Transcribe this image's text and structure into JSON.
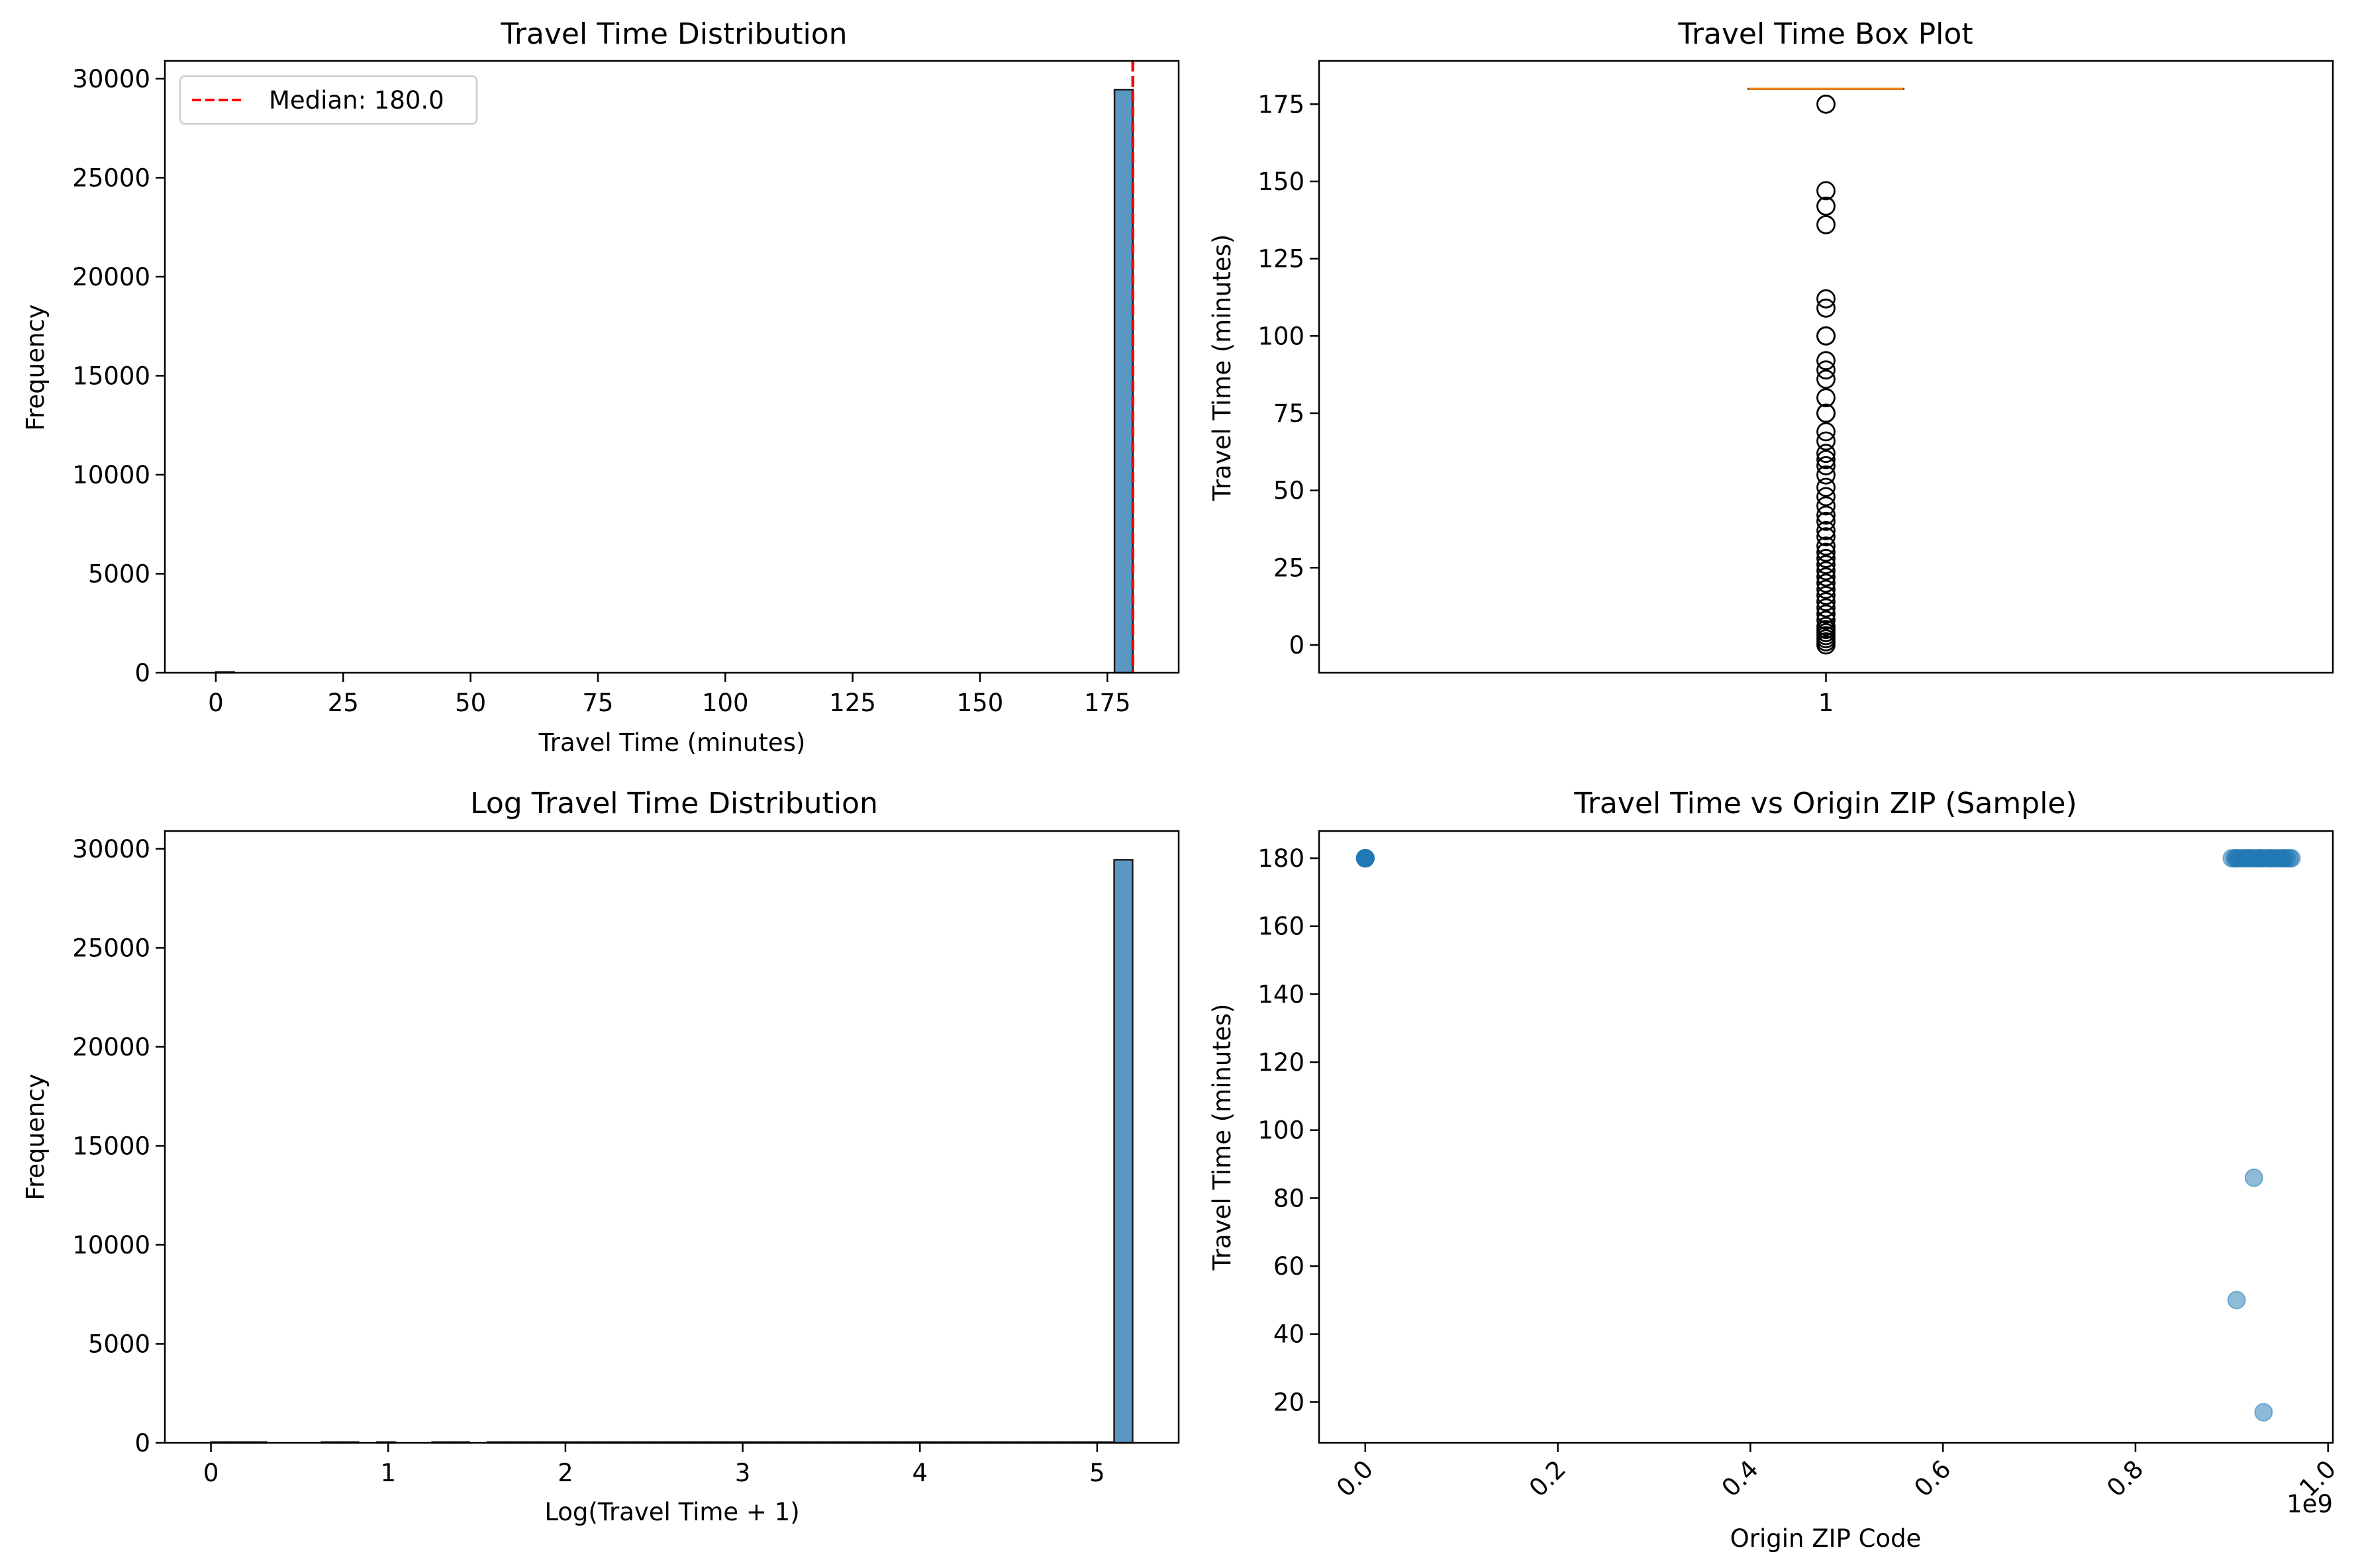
{
  "chart_data": [
    {
      "type": "histogram",
      "title": "Travel Time Distribution",
      "xlabel": "Travel Time (minutes)",
      "ylabel": "Frequency",
      "xlim": [
        -10,
        189
      ],
      "ylim": [
        0,
        30900
      ],
      "xticks": [
        0,
        25,
        50,
        75,
        100,
        125,
        150,
        175
      ],
      "yticks": [
        0,
        5000,
        10000,
        15000,
        20000,
        25000,
        30000
      ],
      "bins": [
        {
          "x0": 0,
          "x1": 3.6,
          "count": 25
        },
        {
          "x0": 176.4,
          "x1": 180,
          "count": 29450
        }
      ],
      "bar_color": "#5b97c3",
      "edge_color": "#1a1a1a",
      "median_line": {
        "x": 180,
        "label": "Median: 180.0",
        "color": "#ff0000"
      },
      "legend_position": "top-left",
      "grid": false
    },
    {
      "type": "box",
      "title": "Travel Time Box Plot",
      "xlabel": "",
      "ylabel": "Travel Time (minutes)",
      "ylim": [
        -9,
        189
      ],
      "yticks": [
        0,
        25,
        50,
        75,
        100,
        125,
        150,
        175
      ],
      "xticks": [
        "1"
      ],
      "median": 180,
      "q1": 180,
      "q3": 180,
      "median_color": "#ff7f0e",
      "outliers": [
        175,
        147,
        142,
        136,
        112,
        109,
        100,
        100,
        92,
        89,
        86,
        80,
        75,
        75,
        69,
        66,
        62,
        60,
        58,
        55,
        51,
        48,
        45,
        42,
        40,
        37,
        35,
        32,
        30,
        28,
        26,
        24,
        22,
        20,
        18,
        16,
        14,
        12,
        10,
        8,
        6,
        5,
        4,
        3,
        2,
        1,
        0
      ],
      "grid": false
    },
    {
      "type": "histogram",
      "title": "Log Travel Time Distribution",
      "xlabel": "Log(Travel Time + 1)",
      "ylabel": "Frequency",
      "xlim": [
        -0.26,
        5.46
      ],
      "ylim": [
        0,
        30900
      ],
      "xticks": [
        0,
        1,
        2,
        3,
        4,
        5
      ],
      "yticks": [
        0,
        5000,
        10000,
        15000,
        20000,
        25000,
        30000
      ],
      "bins": [
        {
          "x0": 0.0,
          "x1": 0.104,
          "count": 8
        },
        {
          "x0": 0.104,
          "x1": 0.208,
          "count": 6
        },
        {
          "x0": 0.208,
          "x1": 0.312,
          "count": 5
        },
        {
          "x0": 0.624,
          "x1": 0.728,
          "count": 5
        },
        {
          "x0": 0.728,
          "x1": 0.832,
          "count": 4
        },
        {
          "x0": 0.936,
          "x1": 1.04,
          "count": 6
        },
        {
          "x0": 1.248,
          "x1": 1.352,
          "count": 4
        },
        {
          "x0": 1.352,
          "x1": 1.456,
          "count": 4
        },
        {
          "x0": 1.56,
          "x1": 1.664,
          "count": 3
        },
        {
          "x0": 1.664,
          "x1": 1.768,
          "count": 3
        },
        {
          "x0": 1.768,
          "x1": 1.872,
          "count": 3
        },
        {
          "x0": 1.872,
          "x1": 1.976,
          "count": 3
        },
        {
          "x0": 1.976,
          "x1": 2.08,
          "count": 4
        },
        {
          "x0": 2.08,
          "x1": 2.184,
          "count": 3
        },
        {
          "x0": 2.184,
          "x1": 2.288,
          "count": 3
        },
        {
          "x0": 2.288,
          "x1": 2.392,
          "count": 3
        },
        {
          "x0": 2.392,
          "x1": 2.496,
          "count": 3
        },
        {
          "x0": 2.496,
          "x1": 2.6,
          "count": 3
        },
        {
          "x0": 2.6,
          "x1": 2.704,
          "count": 3
        },
        {
          "x0": 2.704,
          "x1": 2.808,
          "count": 3
        },
        {
          "x0": 2.808,
          "x1": 2.912,
          "count": 3
        },
        {
          "x0": 2.912,
          "x1": 3.016,
          "count": 3
        },
        {
          "x0": 3.016,
          "x1": 3.12,
          "count": 3
        },
        {
          "x0": 3.12,
          "x1": 3.224,
          "count": 3
        },
        {
          "x0": 3.224,
          "x1": 3.328,
          "count": 3
        },
        {
          "x0": 3.328,
          "x1": 3.432,
          "count": 3
        },
        {
          "x0": 3.432,
          "x1": 3.536,
          "count": 3
        },
        {
          "x0": 3.536,
          "x1": 3.64,
          "count": 3
        },
        {
          "x0": 3.64,
          "x1": 3.744,
          "count": 3
        },
        {
          "x0": 3.744,
          "x1": 3.848,
          "count": 3
        },
        {
          "x0": 3.848,
          "x1": 3.952,
          "count": 3
        },
        {
          "x0": 3.952,
          "x1": 4.056,
          "count": 3
        },
        {
          "x0": 4.056,
          "x1": 4.16,
          "count": 3
        },
        {
          "x0": 4.16,
          "x1": 4.264,
          "count": 4
        },
        {
          "x0": 4.264,
          "x1": 4.368,
          "count": 3
        },
        {
          "x0": 4.368,
          "x1": 4.472,
          "count": 3
        },
        {
          "x0": 4.472,
          "x1": 4.576,
          "count": 3
        },
        {
          "x0": 4.576,
          "x1": 4.68,
          "count": 4
        },
        {
          "x0": 4.68,
          "x1": 4.784,
          "count": 3
        },
        {
          "x0": 4.784,
          "x1": 4.888,
          "count": 3
        },
        {
          "x0": 4.888,
          "x1": 4.992,
          "count": 3
        },
        {
          "x0": 4.992,
          "x1": 5.096,
          "count": 4
        },
        {
          "x0": 5.096,
          "x1": 5.2,
          "count": 29450
        }
      ],
      "bar_color": "#5b97c3",
      "edge_color": "#1a1a1a",
      "grid": false
    },
    {
      "type": "scatter",
      "title": "Travel Time vs Origin ZIP (Sample)",
      "xlabel": "Origin ZIP Code",
      "ylabel": "Travel Time (minutes)",
      "x_scale_label": "1e9",
      "xlim": [
        -0.048,
        1.005
      ],
      "ylim": [
        8,
        188
      ],
      "xticks": [
        0.0,
        0.2,
        0.4,
        0.6,
        0.8,
        1.0
      ],
      "xtick_labels": [
        "0.0",
        "0.2",
        "0.4",
        "0.6",
        "0.8",
        "1.0"
      ],
      "yticks": [
        20,
        40,
        60,
        80,
        100,
        120,
        140,
        160,
        180
      ],
      "point_color": "#1f77b4",
      "point_alpha": 0.5,
      "points": [
        {
          "x": 0.0,
          "y": 180
        },
        {
          "x": 0.0,
          "y": 180
        },
        {
          "x": 0.0,
          "y": 180
        },
        {
          "x": 0.0,
          "y": 180
        },
        {
          "x": 0.0,
          "y": 180
        },
        {
          "x": 0.0,
          "y": 180
        },
        {
          "x": 0.0,
          "y": 180
        },
        {
          "x": 0.0,
          "y": 180
        },
        {
          "x": 0.9,
          "y": 180
        },
        {
          "x": 0.903,
          "y": 180
        },
        {
          "x": 0.906,
          "y": 180
        },
        {
          "x": 0.909,
          "y": 180
        },
        {
          "x": 0.912,
          "y": 180
        },
        {
          "x": 0.915,
          "y": 180
        },
        {
          "x": 0.918,
          "y": 180
        },
        {
          "x": 0.921,
          "y": 180
        },
        {
          "x": 0.924,
          "y": 180
        },
        {
          "x": 0.927,
          "y": 180
        },
        {
          "x": 0.93,
          "y": 180
        },
        {
          "x": 0.933,
          "y": 180
        },
        {
          "x": 0.936,
          "y": 180
        },
        {
          "x": 0.939,
          "y": 180
        },
        {
          "x": 0.942,
          "y": 180
        },
        {
          "x": 0.945,
          "y": 180
        },
        {
          "x": 0.948,
          "y": 180
        },
        {
          "x": 0.951,
          "y": 180
        },
        {
          "x": 0.954,
          "y": 180
        },
        {
          "x": 0.957,
          "y": 180
        },
        {
          "x": 0.96,
          "y": 180
        },
        {
          "x": 0.962,
          "y": 180
        },
        {
          "x": 0.905,
          "y": 180
        },
        {
          "x": 0.917,
          "y": 180
        },
        {
          "x": 0.929,
          "y": 180
        },
        {
          "x": 0.941,
          "y": 180
        },
        {
          "x": 0.953,
          "y": 180
        },
        {
          "x": 0.923,
          "y": 86
        },
        {
          "x": 0.905,
          "y": 50
        },
        {
          "x": 0.933,
          "y": 17
        }
      ],
      "grid": false
    }
  ]
}
